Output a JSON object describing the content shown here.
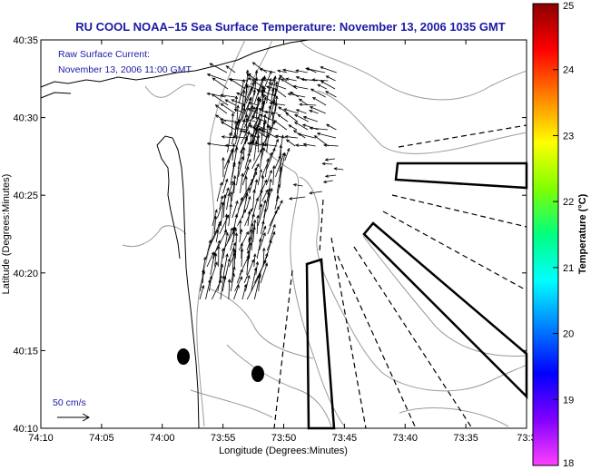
{
  "title": "RU COOL  NOAA–15  Sea Surface Temperature:  November 13, 2006 1035 GMT",
  "annotation": {
    "line1": "Raw Surface Current:",
    "line2": "November 13, 2006 11:00 GMT"
  },
  "scale_label": "50 cm/s",
  "x_axis": {
    "label": "Longitude (Degrees:Minutes)",
    "ticks": [
      "74:10",
      "74:05",
      "74:00",
      "73:55",
      "73:50",
      "73:45",
      "73:40",
      "73:35",
      "73:3"
    ]
  },
  "y_axis": {
    "label": "Latitude (Degrees:Minutes)",
    "ticks": [
      "40:35",
      "40:30",
      "40:25",
      "40:20",
      "40:15",
      "40:10"
    ]
  },
  "colorbar": {
    "label": "Temperature (°C)",
    "ticks": [
      "25",
      "24",
      "23",
      "22",
      "21",
      "20",
      "19",
      "18"
    ],
    "colors": [
      "#8b0000",
      "#ff0000",
      "#ff8000",
      "#ffff00",
      "#80ff00",
      "#00ff80",
      "#00ffff",
      "#0080ff",
      "#0000ff",
      "#8000ff",
      "#ff40ff"
    ]
  }
}
